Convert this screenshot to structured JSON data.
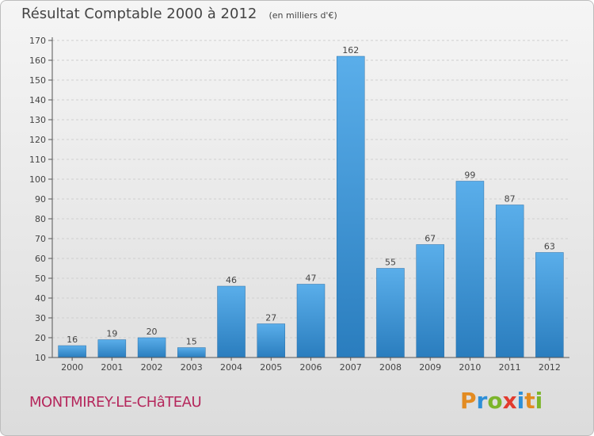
{
  "header": {
    "title": "Résultat Comptable 2000 à 2012",
    "subtitle": "(en milliers d'€)"
  },
  "footer": {
    "commune": "MONTMIREY-LE-CHâTEAU",
    "logo_text": "Proxiti",
    "logo_colors": [
      "#e38b21",
      "#2d8fd8",
      "#7cb52b",
      "#e23b2e",
      "#2d8fd8",
      "#e38b21",
      "#7cb52b"
    ]
  },
  "colors": {
    "bar_top": "#5aaeea",
    "bar_bottom": "#2a7dbe",
    "grid": "#cfcfcf",
    "axis": "#555555",
    "text": "#444444",
    "commune": "#b5275c"
  },
  "chart_data": {
    "type": "bar",
    "categories": [
      "2000",
      "2001",
      "2002",
      "2003",
      "2004",
      "2005",
      "2006",
      "2007",
      "2008",
      "2009",
      "2010",
      "2011",
      "2012"
    ],
    "values": [
      16,
      19,
      20,
      15,
      46,
      27,
      47,
      162,
      55,
      67,
      99,
      87,
      63
    ],
    "ylim": [
      10,
      170
    ],
    "yticks": [
      10,
      20,
      30,
      40,
      50,
      60,
      70,
      80,
      90,
      100,
      110,
      120,
      130,
      140,
      150,
      160,
      170
    ],
    "grid": true,
    "legend": "none"
  }
}
